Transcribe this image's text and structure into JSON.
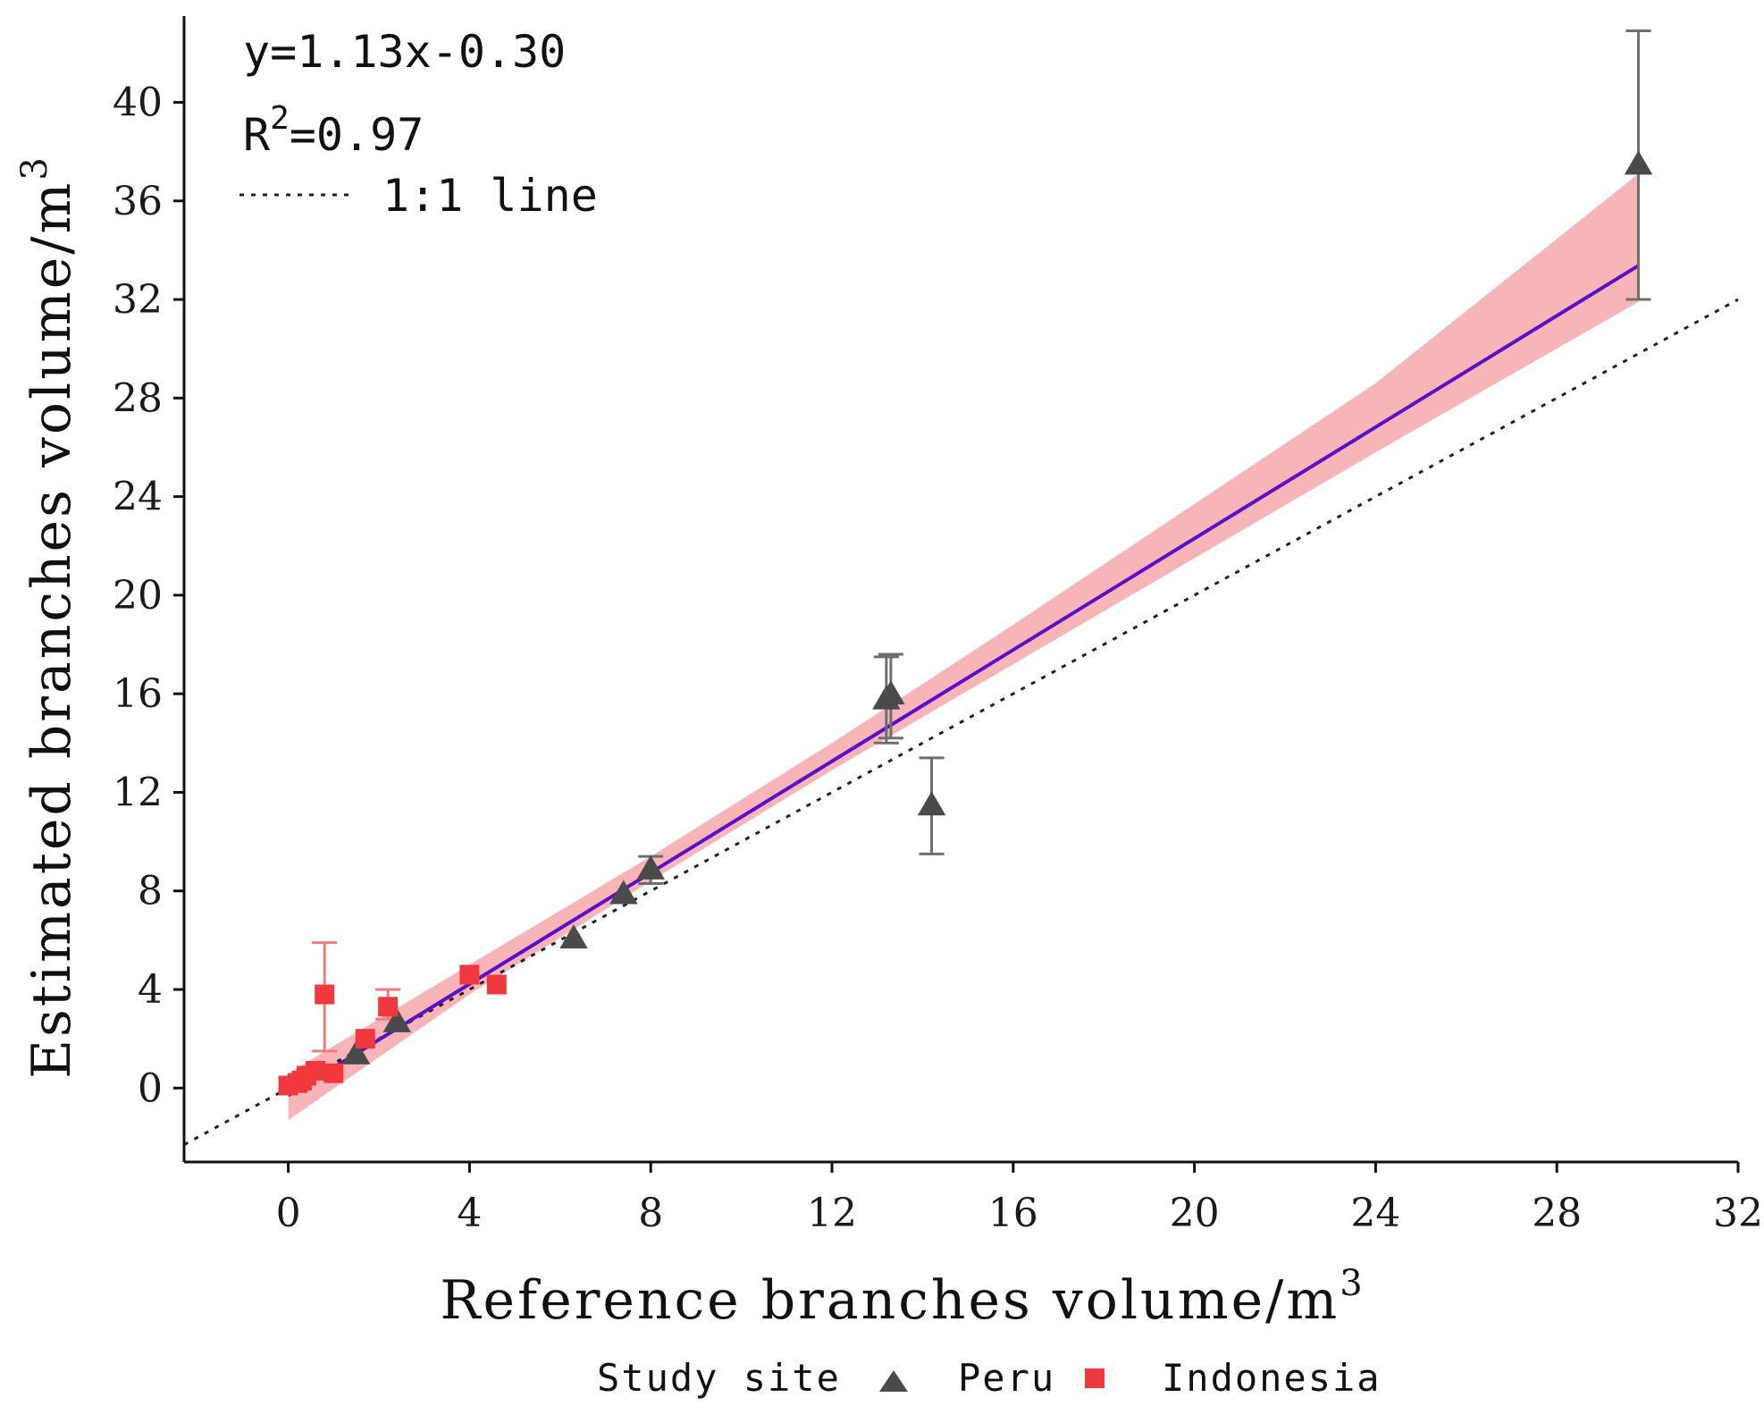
{
  "chart_data": {
    "type": "scatter",
    "xlabel": "Reference branches volume/m",
    "xlabel_sup": "3",
    "ylabel": "Estimated branches volume/m",
    "ylabel_sup": "3",
    "xlim": [
      -2.3,
      32
    ],
    "ylim": [
      -3,
      43.5
    ],
    "x_ticks": [
      0,
      4,
      8,
      12,
      16,
      20,
      24,
      28,
      32
    ],
    "y_ticks": [
      0,
      4,
      8,
      12,
      16,
      20,
      24,
      28,
      32,
      36,
      40
    ],
    "fit": {
      "slope": 1.13,
      "intercept": -0.3,
      "x_range": [
        0,
        29.8
      ],
      "color": "#5b0fc8",
      "band_color": "#f6a8ab"
    },
    "band": [
      {
        "x": 0,
        "lower": -1.3,
        "upper": 0.6
      },
      {
        "x": 4,
        "lower": 3.8,
        "upper": 5.0
      },
      {
        "x": 8,
        "lower": 8.4,
        "upper": 9.4
      },
      {
        "x": 12,
        "lower": 12.9,
        "upper": 14.0
      },
      {
        "x": 16,
        "lower": 17.2,
        "upper": 18.8
      },
      {
        "x": 20,
        "lower": 21.5,
        "upper": 23.7
      },
      {
        "x": 24,
        "lower": 25.8,
        "upper": 28.6
      },
      {
        "x": 29.8,
        "lower": 31.9,
        "upper": 37.1
      }
    ],
    "one_to_one_line": true,
    "annotations": {
      "equation": "y=1.13x-0.30",
      "r2_prefix": "R",
      "r2_sup": "2",
      "r2_value": "=0.97",
      "line_legend": "1:1 line"
    },
    "legend": {
      "title": "Study site",
      "entries": [
        {
          "name": "Peru",
          "marker": "triangle",
          "color": "#4a4a4a"
        },
        {
          "name": "Indonesia",
          "marker": "square",
          "color": "#f0393f"
        }
      ]
    },
    "series": [
      {
        "name": "Peru",
        "marker": "triangle",
        "color": "#4a4a4a",
        "points": [
          {
            "x": 1.5,
            "y": 1.4
          },
          {
            "x": 2.4,
            "y": 2.7
          },
          {
            "x": 6.3,
            "y": 6.1
          },
          {
            "x": 7.4,
            "y": 7.9
          },
          {
            "x": 8.0,
            "y": 8.9,
            "yerr": [
              8.3,
              9.4
            ]
          },
          {
            "x": 13.2,
            "y": 15.8,
            "yerr": [
              14.0,
              17.5
            ]
          },
          {
            "x": 13.3,
            "y": 16.0,
            "yerr": [
              14.2,
              17.6
            ]
          },
          {
            "x": 14.2,
            "y": 11.5,
            "yerr": [
              9.5,
              13.4
            ]
          },
          {
            "x": 29.8,
            "y": 37.5,
            "yerr": [
              32.0,
              42.9
            ]
          }
        ]
      },
      {
        "name": "Indonesia",
        "marker": "square",
        "color": "#f0393f",
        "points": [
          {
            "x": 0.0,
            "y": 0.1
          },
          {
            "x": 0.2,
            "y": 0.2
          },
          {
            "x": 0.3,
            "y": 0.3
          },
          {
            "x": 0.4,
            "y": 0.5
          },
          {
            "x": 0.6,
            "y": 0.7
          },
          {
            "x": 0.8,
            "y": 3.8,
            "yerr": [
              1.5,
              5.9
            ]
          },
          {
            "x": 1.0,
            "y": 0.6
          },
          {
            "x": 1.7,
            "y": 2.0
          },
          {
            "x": 2.2,
            "y": 3.3,
            "yerr": [
              2.8,
              4.0
            ]
          },
          {
            "x": 4.0,
            "y": 4.6
          },
          {
            "x": 4.6,
            "y": 4.2
          }
        ]
      }
    ]
  }
}
